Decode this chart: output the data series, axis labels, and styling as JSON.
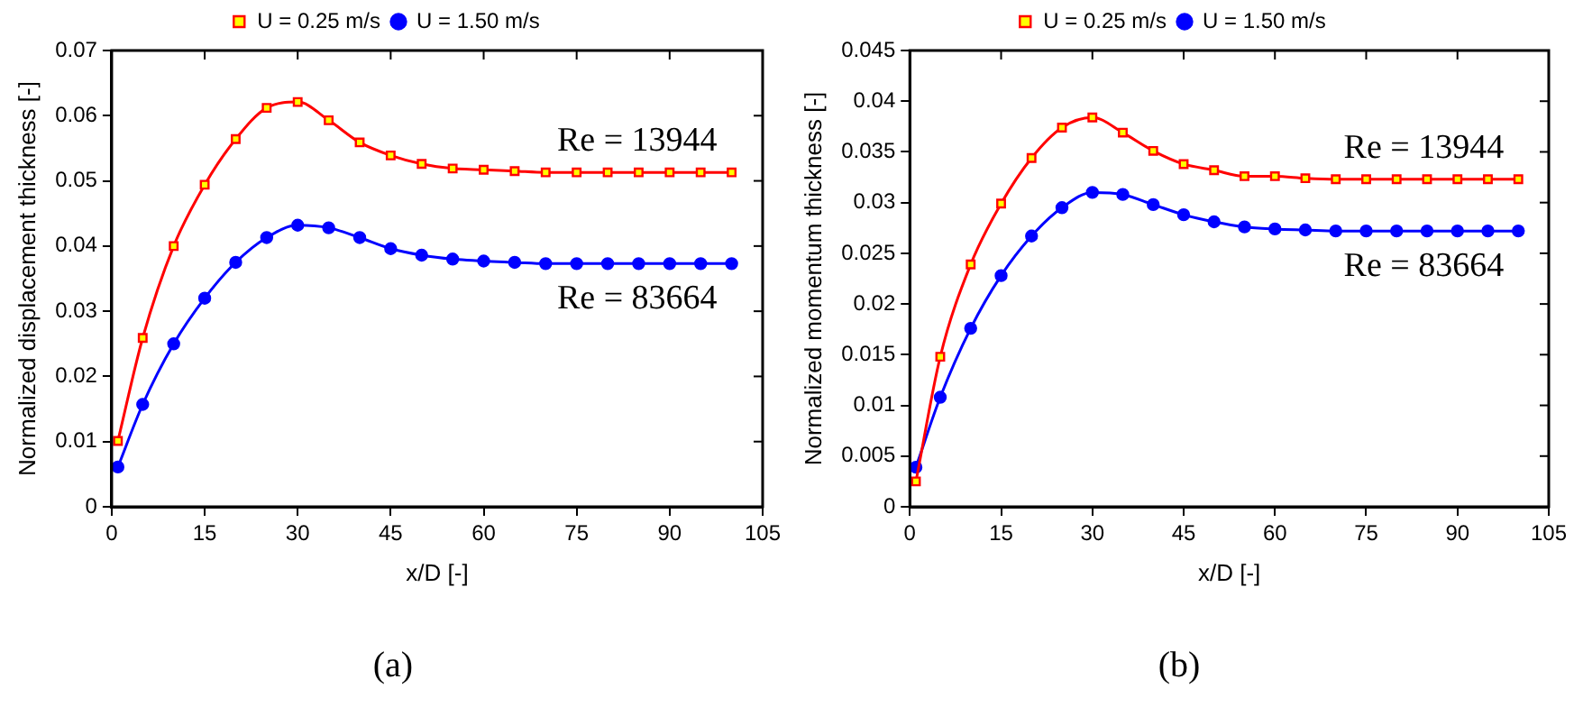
{
  "chart_data": [
    {
      "type": "line",
      "xlabel": "x/D [-]",
      "ylabel": "Normalized displacement thickness [-]",
      "legend": "top",
      "line_style": "solid",
      "grid": false,
      "xlim": [
        0,
        105
      ],
      "xticks": [
        0,
        15,
        30,
        45,
        60,
        75,
        90,
        105
      ],
      "ylim": [
        0,
        0.07
      ],
      "yticks": [
        0,
        0.01,
        0.02,
        0.03,
        0.04,
        0.05,
        0.06,
        0.07
      ],
      "series": [
        {
          "name": "U = 0.25 m/s",
          "color": "#ff0000",
          "marker": "square",
          "x": [
            1,
            5,
            10,
            15,
            20,
            25,
            30,
            35,
            40,
            45,
            50,
            55,
            60,
            65,
            70,
            75,
            80,
            85,
            90,
            95,
            100
          ],
          "values": [
            0.0101,
            0.0259,
            0.04,
            0.0494,
            0.0564,
            0.0612,
            0.0621,
            0.0593,
            0.0559,
            0.0539,
            0.0526,
            0.0519,
            0.0517,
            0.0515,
            0.0513,
            0.0513,
            0.0513,
            0.0513,
            0.0513,
            0.0513,
            0.0513
          ]
        },
        {
          "name": "U = 1.50 m/s",
          "color": "#0000ff",
          "marker": "circle",
          "x": [
            1,
            5,
            10,
            15,
            20,
            25,
            30,
            35,
            40,
            45,
            50,
            55,
            60,
            65,
            70,
            75,
            80,
            85,
            90,
            95,
            100
          ],
          "values": [
            0.0061,
            0.0157,
            0.025,
            0.032,
            0.0375,
            0.0413,
            0.0432,
            0.0428,
            0.0413,
            0.0396,
            0.0386,
            0.038,
            0.0377,
            0.0375,
            0.0373,
            0.0373,
            0.0373,
            0.0373,
            0.0373,
            0.0373,
            0.0373
          ]
        }
      ],
      "annotations": [
        "Re = 13944",
        "Re = 83664",
        "(a)"
      ]
    },
    {
      "type": "line",
      "xlabel": "x/D [-]",
      "ylabel": "Normalized momentum thickness [-]",
      "legend": "top",
      "line_style": "solid",
      "grid": false,
      "xlim": [
        0,
        105
      ],
      "xticks": [
        0,
        15,
        30,
        45,
        60,
        75,
        90,
        105
      ],
      "ylim": [
        0,
        0.045
      ],
      "yticks": [
        0,
        0.005,
        0.01,
        0.015,
        0.02,
        0.025,
        0.03,
        0.035,
        0.04,
        0.045
      ],
      "series": [
        {
          "name": "U = 0.25 m/s",
          "color": "#ff0000",
          "marker": "square",
          "x": [
            1,
            5,
            10,
            15,
            20,
            25,
            30,
            35,
            40,
            45,
            50,
            55,
            60,
            65,
            70,
            75,
            80,
            85,
            90,
            95,
            100
          ],
          "values": [
            0.0025,
            0.0148,
            0.0239,
            0.0299,
            0.0344,
            0.0374,
            0.0384,
            0.0369,
            0.0351,
            0.0338,
            0.0332,
            0.0326,
            0.0326,
            0.0324,
            0.0323,
            0.0323,
            0.0323,
            0.0323,
            0.0323,
            0.0323,
            0.0323
          ]
        },
        {
          "name": "U = 1.50 m/s",
          "color": "#0000ff",
          "marker": "circle",
          "x": [
            1,
            5,
            10,
            15,
            20,
            25,
            30,
            35,
            40,
            45,
            50,
            55,
            60,
            65,
            70,
            75,
            80,
            85,
            90,
            95,
            100
          ],
          "values": [
            0.0039,
            0.0108,
            0.0176,
            0.0228,
            0.0267,
            0.0295,
            0.031,
            0.0308,
            0.0298,
            0.0288,
            0.0281,
            0.0276,
            0.0274,
            0.0273,
            0.0272,
            0.0272,
            0.0272,
            0.0272,
            0.0272,
            0.0272,
            0.0272
          ]
        }
      ],
      "annotations": [
        "Re = 13944",
        "Re = 83664",
        "(b)"
      ]
    }
  ]
}
